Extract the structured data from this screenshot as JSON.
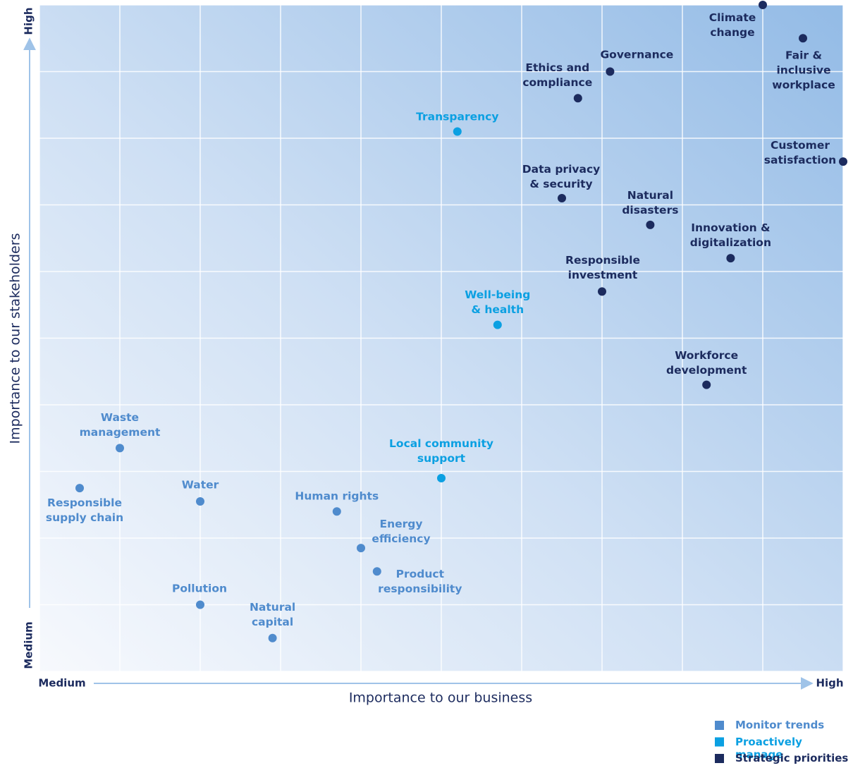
{
  "chart_data": {
    "type": "scatter",
    "xlabel": "Importance to our business",
    "ylabel": "Importance to our stakeholders",
    "xlim": [
      0,
      10
    ],
    "ylim": [
      0,
      10
    ],
    "xticks": [
      {
        "value": 0,
        "label": "Medium"
      },
      {
        "value": 1,
        "label": null
      },
      {
        "value": 2,
        "label": null
      },
      {
        "value": 3,
        "label": null
      },
      {
        "value": 4,
        "label": null
      },
      {
        "value": 5,
        "label": null
      },
      {
        "value": 6,
        "label": null
      },
      {
        "value": 7,
        "label": null
      },
      {
        "value": 8,
        "label": null
      },
      {
        "value": 9,
        "label": null
      },
      {
        "value": 10,
        "label": "High"
      }
    ],
    "yticks": [
      {
        "value": 0,
        "label": "Medium"
      },
      {
        "value": 1,
        "label": null
      },
      {
        "value": 2,
        "label": null
      },
      {
        "value": 3,
        "label": null
      },
      {
        "value": 4,
        "label": null
      },
      {
        "value": 5,
        "label": null
      },
      {
        "value": 6,
        "label": null
      },
      {
        "value": 7,
        "label": null
      },
      {
        "value": 8,
        "label": null
      },
      {
        "value": 9,
        "label": null
      },
      {
        "value": 10,
        "label": "High"
      }
    ],
    "grid": true,
    "legend": "bottom-right",
    "series": [
      {
        "name": "Monitor trends",
        "color": "#4f8bcd",
        "labels": [
          "Waste\nmanagement",
          "Responsible\nsupply chain",
          "Water",
          "Human rights",
          "Energy\nefficiency",
          "Product\nresponsibility",
          "Pollution",
          "Natural\ncapital"
        ],
        "x": [
          1.0,
          0.5,
          2.0,
          3.7,
          4.0,
          4.2,
          2.0,
          2.9
        ],
        "values": [
          3.35,
          2.75,
          2.55,
          2.4,
          1.85,
          1.5,
          1.0,
          0.5
        ]
      },
      {
        "name": "Proactively manage",
        "color": "#0ba0e2",
        "labels": [
          "Transparency",
          "Well-being\n& health",
          "Local community\nsupport"
        ],
        "x": [
          5.2,
          5.7,
          5.0
        ],
        "values": [
          8.1,
          5.2,
          2.9
        ]
      },
      {
        "name": "Strategic priorities",
        "color": "#1c2b5e",
        "labels": [
          "Climate\nchange",
          "Fair &\ninclusive\nworkplace",
          "Governance",
          "Ethics and\ncompliance",
          "Customer\nsatisfaction",
          "Data privacy\n& security",
          "Natural\ndisasters",
          "Innovation &\ndigitalization",
          "Responsible\ninvestment",
          "Workforce\ndevelopment"
        ],
        "x": [
          9.0,
          9.5,
          7.1,
          6.7,
          10.0,
          6.5,
          7.6,
          8.6,
          7.0,
          8.3
        ],
        "values": [
          10.0,
          9.5,
          9.0,
          8.6,
          7.65,
          7.1,
          6.7,
          6.2,
          5.7,
          4.3
        ]
      }
    ]
  }
}
